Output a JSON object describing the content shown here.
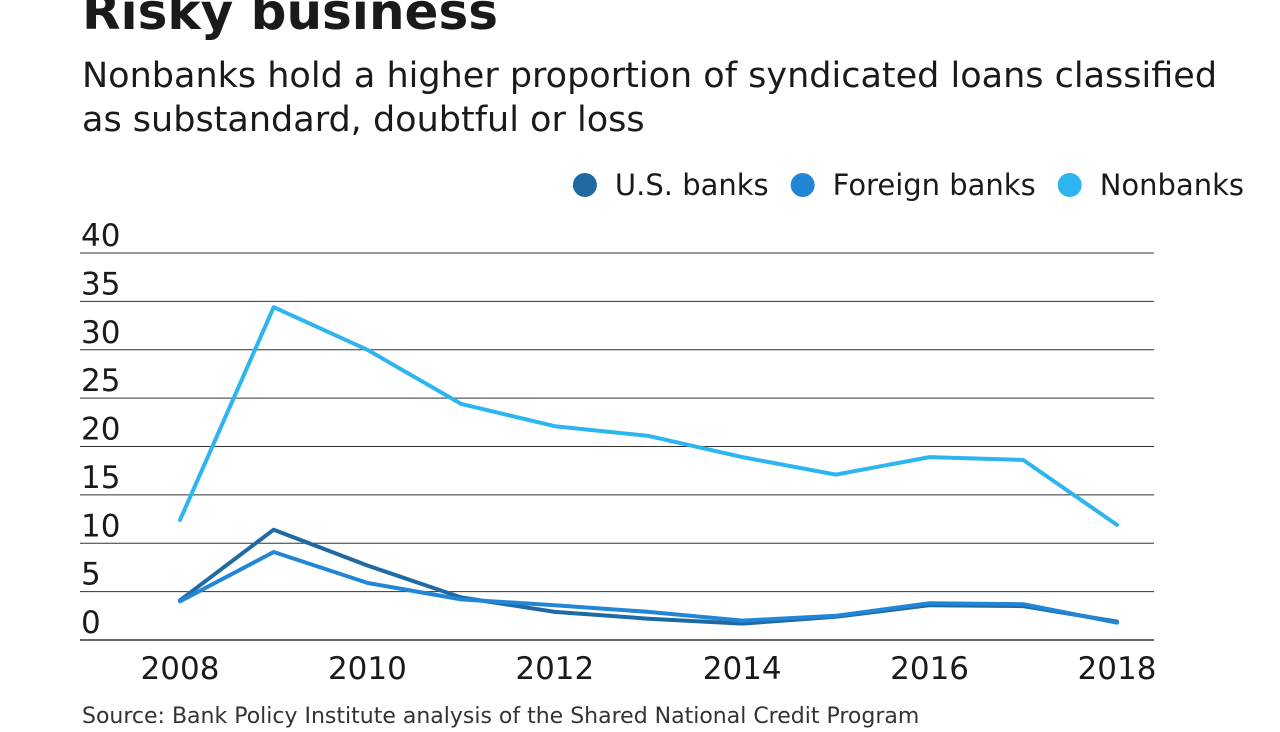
{
  "colors": {
    "us_banks": "#1f6aa3",
    "foreign_banks": "#2286d6",
    "nonbanks": "#2cb5ee",
    "gridline": "#333333",
    "text": "#1a1a1a"
  },
  "chart_data": {
    "type": "line",
    "title": "Risky business",
    "subtitle": "Nonbanks hold a higher proportion of syndicated loans classified as substandard, doubtful or loss",
    "xlabel": "",
    "ylabel": "",
    "x": [
      2008,
      2009,
      2010,
      2011,
      2012,
      2013,
      2014,
      2015,
      2016,
      2017,
      2018
    ],
    "xticks": [
      "2008",
      "2010",
      "2012",
      "2014",
      "2016",
      "2018"
    ],
    "xlim": [
      2008,
      2018
    ],
    "ylim": [
      0,
      40
    ],
    "yticks": [
      "40",
      "35",
      "30",
      "25",
      "20",
      "15",
      "10",
      "5",
      "0"
    ],
    "grid": true,
    "legend_position": "top-right",
    "series": [
      {
        "name": "U.S. banks",
        "color_key": "us_banks",
        "values": [
          4.1,
          11.4,
          7.7,
          4.4,
          2.9,
          2.2,
          1.7,
          2.4,
          3.6,
          3.5,
          1.9
        ]
      },
      {
        "name": "Foreign banks",
        "color_key": "foreign_banks",
        "values": [
          4.0,
          9.1,
          5.9,
          4.2,
          3.6,
          2.9,
          2.0,
          2.5,
          3.8,
          3.7,
          1.8
        ]
      },
      {
        "name": "Nonbanks",
        "color_key": "nonbanks",
        "values": [
          12.4,
          34.4,
          30.0,
          24.4,
          22.1,
          21.1,
          18.9,
          17.1,
          18.9,
          18.6,
          11.9
        ]
      }
    ],
    "source": "Source: Bank Policy Institute analysis of the Shared National Credit Program"
  }
}
